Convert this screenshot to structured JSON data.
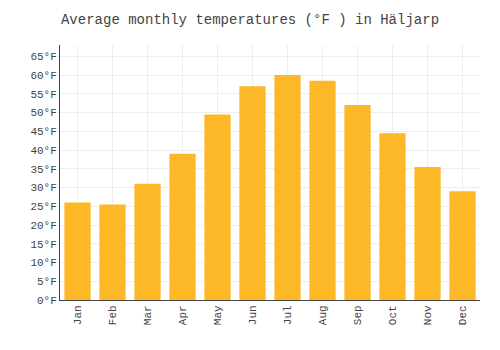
{
  "chart_data": {
    "type": "bar",
    "title": "Average monthly temperatures (°F ) in Häljarp",
    "categories": [
      "Jan",
      "Feb",
      "Mar",
      "Apr",
      "May",
      "Jun",
      "Jul",
      "Aug",
      "Sep",
      "Oct",
      "Nov",
      "Dec"
    ],
    "values": [
      26,
      25.5,
      31,
      39,
      49.5,
      57,
      60,
      58.5,
      52,
      44.5,
      35.5,
      29
    ],
    "color": "#FDB827",
    "ylim": [
      0,
      68
    ],
    "yticks": [
      {
        "value": 0,
        "label": "0°F"
      },
      {
        "value": 5,
        "label": "5°F"
      },
      {
        "value": 10,
        "label": "10°F"
      },
      {
        "value": 15,
        "label": "15°F"
      },
      {
        "value": 20,
        "label": "20°F"
      },
      {
        "value": 25,
        "label": "25°F"
      },
      {
        "value": 30,
        "label": "30°F"
      },
      {
        "value": 35,
        "label": "35°F"
      },
      {
        "value": 40,
        "label": "40°F"
      },
      {
        "value": 45,
        "label": "45°F"
      },
      {
        "value": 50,
        "label": "50°F"
      },
      {
        "value": 55,
        "label": "55°F"
      },
      {
        "value": 60,
        "label": "60°F"
      },
      {
        "value": 65,
        "label": "65°F"
      }
    ],
    "grid": true
  }
}
